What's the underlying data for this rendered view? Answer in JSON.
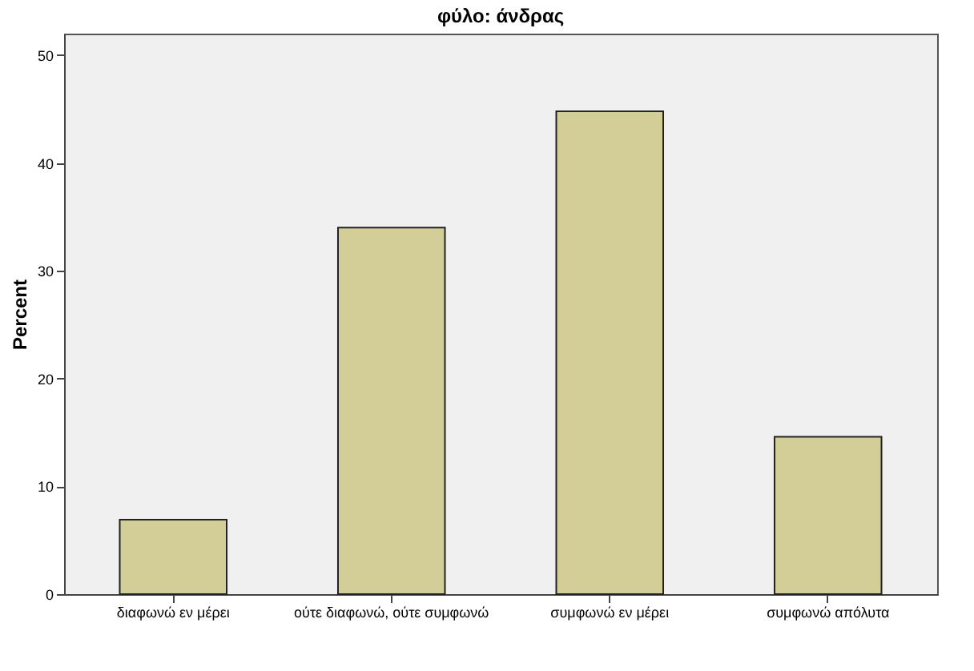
{
  "chart_data": {
    "type": "bar",
    "title": "φύλο: άνδρας",
    "ylabel": "Percent",
    "categories": [
      "διαφωνώ εν μέρει",
      "ούτε διαφωνώ, ούτε συμφωνώ",
      "συμφωνώ εν μέρει",
      "συμφωνώ απόλυτα"
    ],
    "values": [
      6.9,
      34.0,
      44.8,
      14.6
    ],
    "color": "#d3ce98",
    "ylim": [
      0,
      52
    ],
    "yticks": [
      0,
      10,
      20,
      30,
      40,
      50
    ]
  }
}
